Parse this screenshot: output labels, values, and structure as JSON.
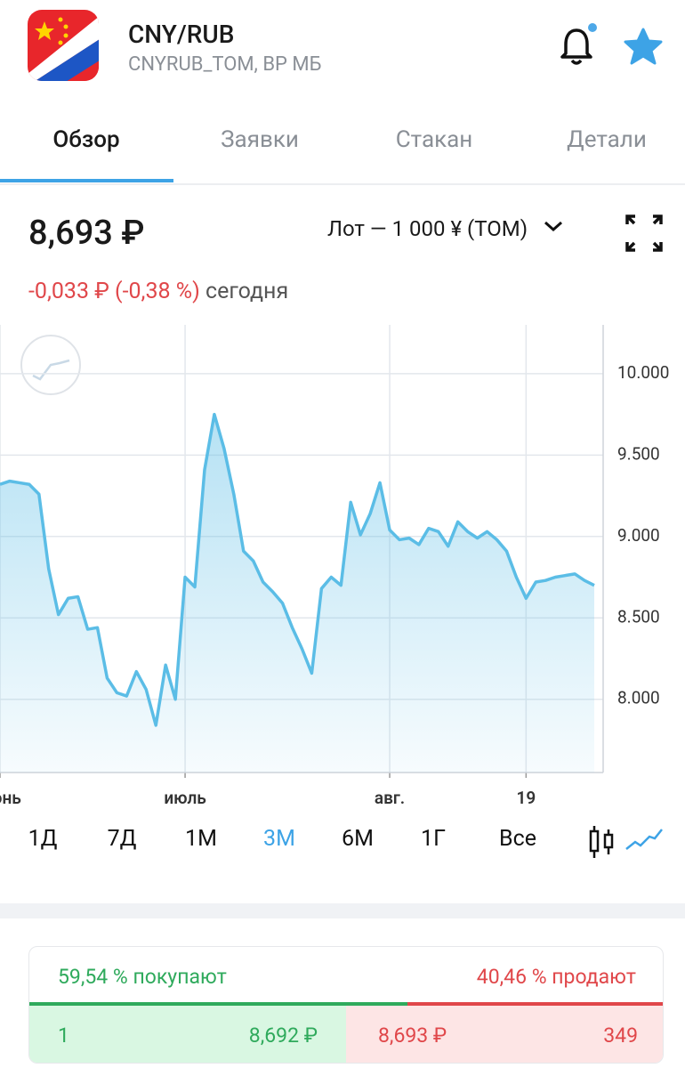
{
  "header": {
    "title": "CNY/RUB",
    "subtitle": "CNYRUB_TOM, ВР МБ"
  },
  "tabs": [
    "Обзор",
    "Заявки",
    "Стакан",
    "Детали"
  ],
  "active_tab": 0,
  "quote": {
    "price": "8,693 ₽",
    "lot": "Лот — 1 000 ¥ (TOM)",
    "change": "-0,033 ₽ (-0,38 %)",
    "period": "сегодня"
  },
  "chart_data": {
    "type": "area",
    "color": "#5bbde6",
    "categories": [
      "июнь",
      null,
      null,
      null,
      null,
      null,
      null,
      null,
      null,
      null,
      null,
      null,
      null,
      null,
      null,
      null,
      null,
      null,
      null,
      "июль",
      null,
      null,
      null,
      null,
      null,
      null,
      null,
      null,
      null,
      null,
      null,
      null,
      null,
      null,
      null,
      null,
      null,
      null,
      null,
      null,
      "авг.",
      null,
      null,
      null,
      null,
      null,
      null,
      null,
      null,
      null,
      null,
      null,
      null,
      null,
      "19",
      null,
      null,
      null,
      null,
      null,
      null,
      null
    ],
    "values": [
      9.32,
      9.34,
      9.33,
      9.32,
      9.26,
      8.8,
      8.52,
      8.62,
      8.63,
      8.43,
      8.44,
      8.13,
      8.04,
      8.02,
      8.17,
      8.06,
      7.84,
      8.21,
      8.0,
      8.75,
      8.69,
      9.41,
      9.75,
      9.54,
      9.26,
      8.91,
      8.85,
      8.72,
      8.66,
      8.59,
      8.44,
      8.31,
      8.16,
      8.68,
      8.75,
      8.7,
      9.21,
      9.01,
      9.14,
      9.33,
      9.04,
      8.98,
      8.99,
      8.95,
      9.05,
      9.03,
      8.94,
      9.09,
      9.03,
      8.99,
      9.03,
      8.98,
      8.91,
      8.75,
      8.62,
      8.72,
      8.73,
      8.75,
      8.76,
      8.77,
      8.73,
      8.7
    ],
    "ylim": [
      7.55,
      10.3
    ],
    "yticks": [
      {
        "value": 8,
        "label": "8.000"
      },
      {
        "value": 8.5,
        "label": "8.500"
      },
      {
        "value": 9,
        "label": "9.000"
      },
      {
        "value": 9.5,
        "label": "9.500"
      },
      {
        "value": 10,
        "label": "10.000"
      }
    ],
    "grid": true
  },
  "periods": [
    "1Д",
    "7Д",
    "1М",
    "3М",
    "6М",
    "1Г",
    "Все"
  ],
  "active_period": 3,
  "sentiment": {
    "buy_label": "59,54 % покупают",
    "buy_percent": 59.54,
    "sell_label": "40,46 % продают",
    "sell_percent": 40.46
  },
  "book": {
    "bid_qty": "1",
    "bid_price": "8,692 ₽",
    "ask_price": "8,693 ₽",
    "ask_qty": "349"
  }
}
